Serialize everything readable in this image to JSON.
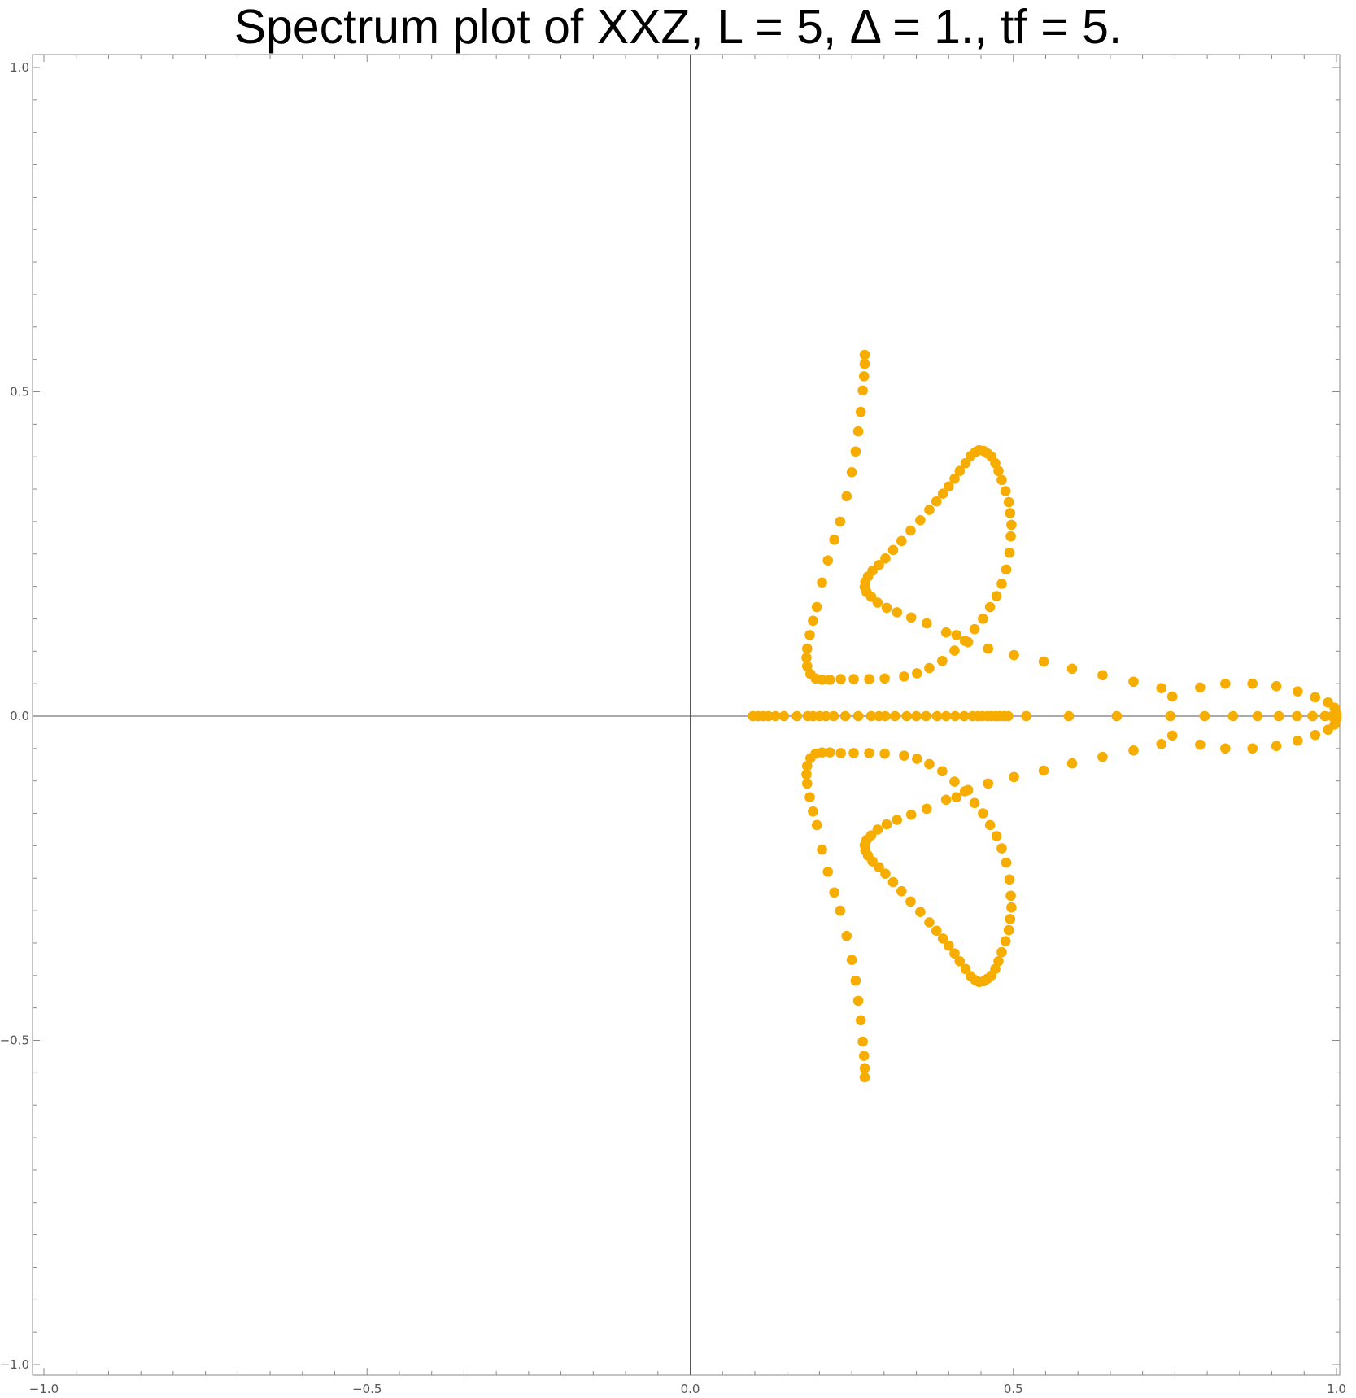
{
  "chart_data": {
    "type": "scatter",
    "title": "Spectrum plot of XXZ, L = 5, Δ = 1., tf = 5.",
    "xlabel": "",
    "ylabel": "",
    "xlim": [
      -1.0,
      1.0
    ],
    "ylim": [
      -1.0,
      1.0
    ],
    "grid": false,
    "axes_through_origin": true,
    "marker_color": "#f7ad00",
    "axis_color": "#555555",
    "x_ticks": [
      {
        "value": -1.0,
        "label": "−1.0"
      },
      {
        "value": -0.5,
        "label": "−0.5"
      },
      {
        "value": 0.0,
        "label": "0.0"
      },
      {
        "value": 0.5,
        "label": "0.5"
      },
      {
        "value": 1.0,
        "label": "1.0"
      }
    ],
    "y_ticks": [
      {
        "value": -1.0,
        "label": "−1.0"
      },
      {
        "value": -0.5,
        "label": "−0.5"
      },
      {
        "value": 0.0,
        "label": "0.0"
      },
      {
        "value": 0.5,
        "label": "0.5"
      },
      {
        "value": 1.0,
        "label": "1.0"
      }
    ],
    "points_upper": [
      [
        0.27,
        0.557
      ],
      [
        0.27,
        0.543
      ],
      [
        0.269,
        0.524
      ],
      [
        0.267,
        0.502
      ],
      [
        0.264,
        0.469
      ],
      [
        0.26,
        0.439
      ],
      [
        0.256,
        0.408
      ],
      [
        0.25,
        0.376
      ],
      [
        0.242,
        0.339
      ],
      [
        0.232,
        0.3
      ],
      [
        0.223,
        0.272
      ],
      [
        0.213,
        0.24
      ],
      [
        0.204,
        0.206
      ],
      [
        0.196,
        0.168
      ],
      [
        0.19,
        0.147
      ],
      [
        0.185,
        0.125
      ],
      [
        0.181,
        0.104
      ],
      [
        0.18,
        0.09
      ],
      [
        0.181,
        0.077
      ],
      [
        0.186,
        0.065
      ],
      [
        0.194,
        0.058
      ],
      [
        0.204,
        0.056
      ],
      [
        0.216,
        0.056
      ],
      [
        0.233,
        0.057
      ],
      [
        0.253,
        0.057
      ],
      [
        0.277,
        0.057
      ],
      [
        0.301,
        0.058
      ],
      [
        0.331,
        0.061
      ],
      [
        0.351,
        0.066
      ],
      [
        0.37,
        0.074
      ],
      [
        0.39,
        0.085
      ],
      [
        0.409,
        0.101
      ],
      [
        0.425,
        0.116
      ],
      [
        0.44,
        0.134
      ],
      [
        0.453,
        0.15
      ],
      [
        0.464,
        0.168
      ],
      [
        0.474,
        0.185
      ],
      [
        0.482,
        0.204
      ],
      [
        0.489,
        0.226
      ],
      [
        0.494,
        0.252
      ],
      [
        0.496,
        0.277
      ],
      [
        0.497,
        0.295
      ],
      [
        0.495,
        0.313
      ],
      [
        0.493,
        0.33
      ],
      [
        0.488,
        0.347
      ],
      [
        0.482,
        0.364
      ],
      [
        0.477,
        0.378
      ],
      [
        0.472,
        0.39
      ],
      [
        0.466,
        0.4
      ],
      [
        0.46,
        0.405
      ],
      [
        0.454,
        0.409
      ],
      [
        0.447,
        0.41
      ],
      [
        0.441,
        0.407
      ],
      [
        0.434,
        0.401
      ],
      [
        0.426,
        0.39
      ],
      [
        0.417,
        0.378
      ],
      [
        0.409,
        0.366
      ],
      [
        0.4,
        0.354
      ],
      [
        0.391,
        0.343
      ],
      [
        0.381,
        0.331
      ],
      [
        0.37,
        0.318
      ],
      [
        0.356,
        0.302
      ],
      [
        0.341,
        0.286
      ],
      [
        0.327,
        0.27
      ],
      [
        0.314,
        0.256
      ],
      [
        0.302,
        0.243
      ],
      [
        0.292,
        0.233
      ],
      [
        0.282,
        0.224
      ],
      [
        0.275,
        0.215
      ],
      [
        0.271,
        0.207
      ],
      [
        0.27,
        0.199
      ],
      [
        0.273,
        0.191
      ],
      [
        0.28,
        0.184
      ],
      [
        0.29,
        0.175
      ],
      [
        0.304,
        0.167
      ],
      [
        0.32,
        0.16
      ],
      [
        0.342,
        0.152
      ],
      [
        0.366,
        0.143
      ],
      [
        0.396,
        0.129
      ],
      [
        0.412,
        0.125
      ],
      [
        0.43,
        0.114
      ],
      [
        0.461,
        0.104
      ],
      [
        0.501,
        0.094
      ],
      [
        0.547,
        0.084
      ],
      [
        0.591,
        0.073
      ],
      [
        0.638,
        0.063
      ],
      [
        0.686,
        0.053
      ],
      [
        0.729,
        0.043
      ],
      [
        0.746,
        0.03
      ],
      [
        0.789,
        0.044
      ],
      [
        0.828,
        0.05
      ],
      [
        0.87,
        0.05
      ],
      [
        0.907,
        0.046
      ],
      [
        0.94,
        0.038
      ],
      [
        0.967,
        0.029
      ],
      [
        0.987,
        0.021
      ],
      [
        0.997,
        0.013
      ],
      [
        1.0,
        0.004
      ]
    ],
    "points_axis": [
      [
        0.097,
        0
      ],
      [
        0.105,
        0
      ],
      [
        0.113,
        0
      ],
      [
        0.121,
        0
      ],
      [
        0.132,
        0
      ],
      [
        0.145,
        0
      ],
      [
        0.165,
        0
      ],
      [
        0.182,
        0
      ],
      [
        0.19,
        0
      ],
      [
        0.2,
        0
      ],
      [
        0.21,
        0
      ],
      [
        0.222,
        0
      ],
      [
        0.24,
        0
      ],
      [
        0.26,
        0
      ],
      [
        0.28,
        0
      ],
      [
        0.292,
        0
      ],
      [
        0.302,
        0
      ],
      [
        0.317,
        0
      ],
      [
        0.335,
        0
      ],
      [
        0.35,
        0
      ],
      [
        0.365,
        0
      ],
      [
        0.382,
        0
      ],
      [
        0.396,
        0
      ],
      [
        0.41,
        0
      ],
      [
        0.424,
        0
      ],
      [
        0.437,
        0
      ],
      [
        0.445,
        0
      ],
      [
        0.452,
        0
      ],
      [
        0.46,
        0
      ],
      [
        0.466,
        0
      ],
      [
        0.473,
        0
      ],
      [
        0.479,
        0
      ],
      [
        0.486,
        0
      ],
      [
        0.492,
        0
      ],
      [
        0.52,
        0
      ],
      [
        0.586,
        0
      ],
      [
        0.66,
        0
      ],
      [
        0.743,
        0
      ],
      [
        0.796,
        0
      ],
      [
        0.84,
        0
      ],
      [
        0.878,
        0
      ],
      [
        0.911,
        0
      ],
      [
        0.939,
        0
      ],
      [
        0.963,
        0
      ],
      [
        0.982,
        0
      ],
      [
        0.993,
        0
      ],
      [
        1.0,
        0
      ]
    ]
  }
}
